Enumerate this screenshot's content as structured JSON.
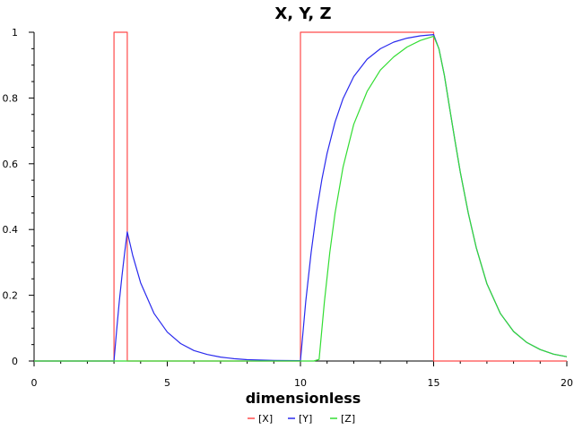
{
  "chart_data": {
    "type": "line",
    "title": "X, Y, Z",
    "xlabel": "dimensionless",
    "ylabel": "",
    "xlim": [
      0,
      20
    ],
    "ylim": [
      0,
      1
    ],
    "xticks": [
      0,
      5,
      10,
      15,
      20
    ],
    "xtick_labels": [
      "0",
      "5",
      "10",
      "15",
      "20"
    ],
    "yticks": [
      0,
      0.2,
      0.4,
      0.6,
      0.8,
      1
    ],
    "ytick_labels": [
      "0",
      "0.2",
      "0.4",
      "0.6",
      "0.8",
      "1"
    ],
    "grid": false,
    "legend_position": "bottom-center",
    "series": [
      {
        "name": "[X]",
        "color": "#ff4a4a",
        "x": [
          0,
          3.0,
          3.0,
          3.5,
          3.5,
          10.0,
          10.0,
          15.0,
          15.0,
          20
        ],
        "y": [
          0,
          0,
          1,
          1,
          0,
          0,
          1,
          1,
          0,
          0
        ]
      },
      {
        "name": "[Y]",
        "color": "#2a2aee",
        "x": [
          0,
          3.0,
          3.1,
          3.2,
          3.3,
          3.4,
          3.5,
          3.7,
          4.0,
          4.5,
          5.0,
          5.5,
          6.0,
          6.5,
          7.0,
          7.5,
          8.0,
          9.0,
          10.0,
          10.2,
          10.4,
          10.6,
          10.8,
          11.0,
          11.3,
          11.6,
          12.0,
          12.5,
          13.0,
          13.5,
          14.0,
          14.5,
          15.0,
          15.2,
          15.4,
          15.6,
          15.8,
          16.0,
          16.3,
          16.6,
          17.0,
          17.5,
          18.0,
          18.5,
          19.0,
          19.5,
          20.0
        ],
        "y": [
          0,
          0,
          0.095,
          0.181,
          0.259,
          0.33,
          0.393,
          0.322,
          0.238,
          0.145,
          0.088,
          0.053,
          0.032,
          0.02,
          0.012,
          0.007,
          0.004,
          0.002,
          0.001,
          0.181,
          0.33,
          0.451,
          0.551,
          0.632,
          0.727,
          0.798,
          0.865,
          0.918,
          0.95,
          0.97,
          0.982,
          0.989,
          0.993,
          0.95,
          0.87,
          0.77,
          0.67,
          0.575,
          0.45,
          0.345,
          0.235,
          0.145,
          0.09,
          0.056,
          0.035,
          0.021,
          0.013
        ]
      },
      {
        "name": "[Z]",
        "color": "#33dd33",
        "x": [
          0,
          10.0,
          10.5,
          10.7,
          10.9,
          11.1,
          11.3,
          11.6,
          12.0,
          12.5,
          13.0,
          13.5,
          14.0,
          14.5,
          15.0,
          15.2,
          15.4,
          15.6,
          15.8,
          16.0,
          16.3,
          16.6,
          17.0,
          17.5,
          18.0,
          18.5,
          19.0,
          19.5,
          20.0
        ],
        "y": [
          0,
          0,
          0,
          0.005,
          0.18,
          0.33,
          0.45,
          0.59,
          0.72,
          0.82,
          0.885,
          0.925,
          0.955,
          0.975,
          0.988,
          0.95,
          0.87,
          0.77,
          0.67,
          0.575,
          0.45,
          0.345,
          0.235,
          0.145,
          0.09,
          0.056,
          0.035,
          0.021,
          0.013
        ]
      }
    ]
  }
}
